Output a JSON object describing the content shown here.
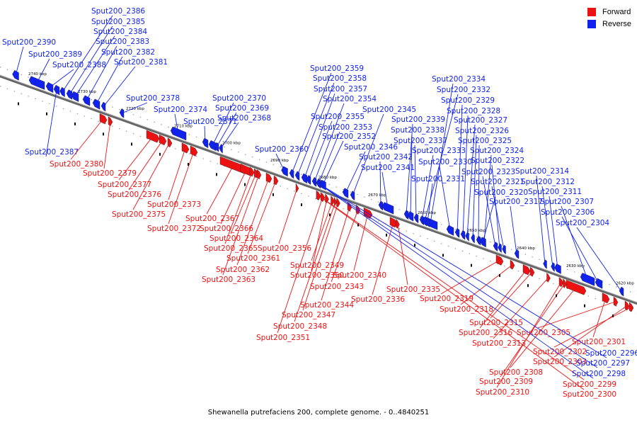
{
  "colors": {
    "forward": "#ee1111",
    "reverse": "#1122ee",
    "axis": "#777777"
  },
  "legend": [
    {
      "label": "Forward",
      "color": "#ee1111"
    },
    {
      "label": "Reverse",
      "color": "#1122ee"
    }
  ],
  "caption": "Shewanella putrefaciens 200, complete genome. - 0..4840251",
  "ticks": [
    "2740 kbp",
    "2730 kbp",
    "2720 kbp",
    "2710 kbp",
    "2700 kbp",
    "2690 kbp",
    "2680 kbp",
    "2670 kbp",
    "2660 kbp",
    "2650 kbp",
    "2640 kbp",
    "2630 kbp",
    "2620 kbp"
  ],
  "genes": [
    {
      "label": "Sput200_2390",
      "strand": "reverse"
    },
    {
      "label": "Sput200_2389",
      "strand": "reverse"
    },
    {
      "label": "Sput200_2388",
      "strand": "reverse"
    },
    {
      "label": "Sput200_2387",
      "strand": "reverse"
    },
    {
      "label": "Sput200_2386",
      "strand": "reverse"
    },
    {
      "label": "Sput200_2385",
      "strand": "reverse"
    },
    {
      "label": "Sput200_2384",
      "strand": "reverse"
    },
    {
      "label": "Sput200_2383",
      "strand": "reverse"
    },
    {
      "label": "Sput200_2382",
      "strand": "reverse"
    },
    {
      "label": "Sput200_2381",
      "strand": "reverse"
    },
    {
      "label": "Sput200_2380",
      "strand": "forward"
    },
    {
      "label": "Sput200_2379",
      "strand": "forward"
    },
    {
      "label": "Sput200_2378",
      "strand": "reverse"
    },
    {
      "label": "Sput200_2377",
      "strand": "forward"
    },
    {
      "label": "Sput200_2376",
      "strand": "forward"
    },
    {
      "label": "Sput200_2375",
      "strand": "forward"
    },
    {
      "label": "Sput200_2374",
      "strand": "reverse"
    },
    {
      "label": "Sput200_2373",
      "strand": "forward"
    },
    {
      "label": "Sput200_2372",
      "strand": "forward"
    },
    {
      "label": "Sput200_2371",
      "strand": "reverse"
    },
    {
      "label": "Sput200_2370",
      "strand": "reverse"
    },
    {
      "label": "Sput200_2369",
      "strand": "reverse"
    },
    {
      "label": "Sput200_2368",
      "strand": "reverse"
    },
    {
      "label": "Sput200_2367",
      "strand": "forward"
    },
    {
      "label": "Sput200_2366",
      "strand": "forward"
    },
    {
      "label": "Sput200_2365",
      "strand": "forward"
    },
    {
      "label": "Sput200_2364",
      "strand": "forward"
    },
    {
      "label": "Sput200_2363",
      "strand": "forward"
    },
    {
      "label": "Sput200_2362",
      "strand": "forward"
    },
    {
      "label": "Sput200_2361",
      "strand": "forward"
    },
    {
      "label": "Sput200_2360",
      "strand": "reverse"
    },
    {
      "label": "Sput200_2359",
      "strand": "reverse"
    },
    {
      "label": "Sput200_2358",
      "strand": "reverse"
    },
    {
      "label": "Sput200_2357",
      "strand": "reverse"
    },
    {
      "label": "Sput200_2356",
      "strand": "forward"
    },
    {
      "label": "Sput200_2355",
      "strand": "reverse"
    },
    {
      "label": "Sput200_2354",
      "strand": "reverse"
    },
    {
      "label": "Sput200_2353",
      "strand": "reverse"
    },
    {
      "label": "Sput200_2352",
      "strand": "reverse"
    },
    {
      "label": "Sput200_2351",
      "strand": "forward"
    },
    {
      "label": "Sput200_2350",
      "strand": "forward"
    },
    {
      "label": "Sput200_2349",
      "strand": "forward"
    },
    {
      "label": "Sput200_2348",
      "strand": "forward"
    },
    {
      "label": "Sput200_2347",
      "strand": "forward"
    },
    {
      "label": "Sput200_2346",
      "strand": "reverse"
    },
    {
      "label": "Sput200_2345",
      "strand": "reverse"
    },
    {
      "label": "Sput200_2344",
      "strand": "forward"
    },
    {
      "label": "Sput200_2343",
      "strand": "forward"
    },
    {
      "label": "Sput200_2342",
      "strand": "reverse"
    },
    {
      "label": "Sput200_2341",
      "strand": "reverse"
    },
    {
      "label": "Sput200_2340",
      "strand": "forward"
    },
    {
      "label": "Sput200_2339",
      "strand": "reverse"
    },
    {
      "label": "Sput200_2338",
      "strand": "reverse"
    },
    {
      "label": "Sput200_2337",
      "strand": "reverse"
    },
    {
      "label": "Sput200_2336",
      "strand": "forward"
    },
    {
      "label": "Sput200_2335",
      "strand": "forward"
    },
    {
      "label": "Sput200_2334",
      "strand": "reverse"
    },
    {
      "label": "Sput200_2333",
      "strand": "reverse"
    },
    {
      "label": "Sput200_2332",
      "strand": "reverse"
    },
    {
      "label": "Sput200_2331",
      "strand": "reverse"
    },
    {
      "label": "Sput200_2330",
      "strand": "reverse"
    },
    {
      "label": "Sput200_2329",
      "strand": "reverse"
    },
    {
      "label": "Sput200_2328",
      "strand": "reverse"
    },
    {
      "label": "Sput200_2327",
      "strand": "reverse"
    },
    {
      "label": "Sput200_2326",
      "strand": "reverse"
    },
    {
      "label": "Sput200_2325",
      "strand": "reverse"
    },
    {
      "label": "Sput200_2324",
      "strand": "reverse"
    },
    {
      "label": "Sput200_2323",
      "strand": "reverse"
    },
    {
      "label": "Sput200_2322",
      "strand": "reverse"
    },
    {
      "label": "Sput200_2321",
      "strand": "reverse"
    },
    {
      "label": "Sput200_2320",
      "strand": "reverse"
    },
    {
      "label": "Sput200_2319",
      "strand": "forward"
    },
    {
      "label": "Sput200_2318",
      "strand": "forward"
    },
    {
      "label": "Sput200_2317",
      "strand": "reverse"
    },
    {
      "label": "Sput200_2316",
      "strand": "forward"
    },
    {
      "label": "Sput200_2315",
      "strand": "forward"
    },
    {
      "label": "Sput200_2314",
      "strand": "reverse"
    },
    {
      "label": "Sput200_2313",
      "strand": "forward"
    },
    {
      "label": "Sput200_2312",
      "strand": "reverse"
    },
    {
      "label": "Sput200_2311",
      "strand": "reverse"
    },
    {
      "label": "Sput200_2310",
      "strand": "forward"
    },
    {
      "label": "Sput200_2309",
      "strand": "forward"
    },
    {
      "label": "Sput200_2308",
      "strand": "forward"
    },
    {
      "label": "Sput200_2307",
      "strand": "reverse"
    },
    {
      "label": "Sput200_2306",
      "strand": "reverse"
    },
    {
      "label": "Sput200_2305",
      "strand": "forward"
    },
    {
      "label": "Sput200_2304",
      "strand": "reverse"
    },
    {
      "label": "Sput200_2303",
      "strand": "forward"
    },
    {
      "label": "Sput200_2302",
      "strand": "forward"
    },
    {
      "label": "Sput200_2301",
      "strand": "forward"
    },
    {
      "label": "Sput200_2300",
      "strand": "forward"
    },
    {
      "label": "Sput200_2299",
      "strand": "forward"
    },
    {
      "label": "Sput200_2298",
      "strand": "reverse"
    },
    {
      "label": "Sput200_2297",
      "strand": "reverse"
    },
    {
      "label": "Sput200_2296",
      "strand": "reverse"
    }
  ]
}
